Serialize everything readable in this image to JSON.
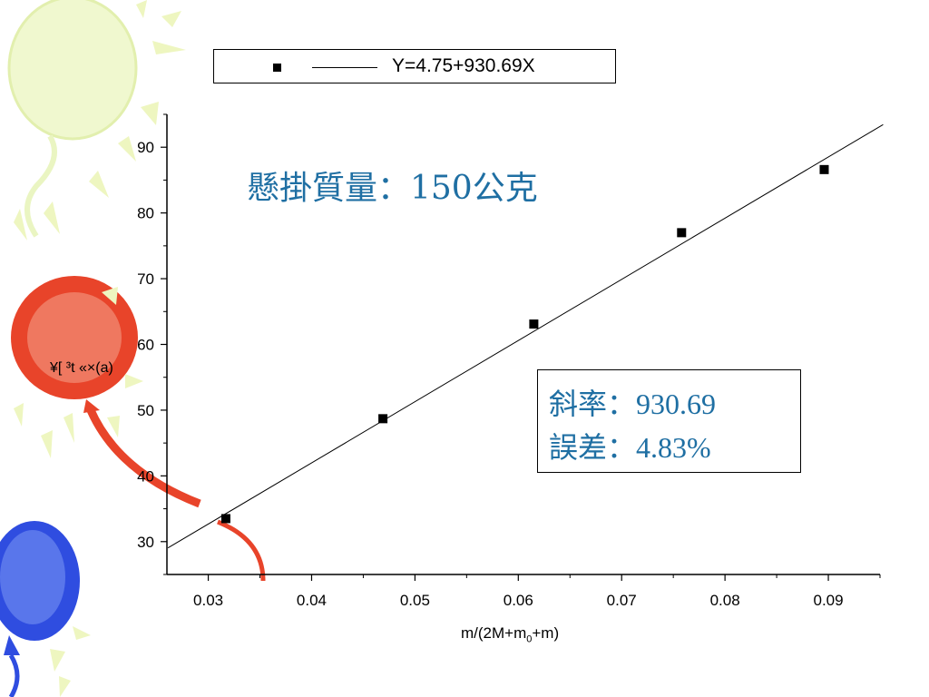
{
  "chart_data": {
    "type": "scatter",
    "title": "",
    "xlabel_main": "m/(2M+m",
    "xlabel_sub": "0",
    "xlabel_tail": "+m)",
    "ylabel": "¥[ ³t «×(a)",
    "xlim": [
      0.026,
      0.095
    ],
    "ylim": [
      25,
      95
    ],
    "xticks": [
      "0.03",
      "0.04",
      "0.05",
      "0.06",
      "0.07",
      "0.08",
      "0.09"
    ],
    "yticks": [
      "30",
      "40",
      "50",
      "60",
      "70",
      "80",
      "90"
    ],
    "series": [
      {
        "kind": "points",
        "x": [
          0.0317,
          0.0469,
          0.0615,
          0.0758,
          0.0896
        ],
        "y": [
          33.5,
          48.7,
          63.1,
          77.0,
          86.6
        ]
      },
      {
        "kind": "fit_line",
        "intercept": 4.75,
        "slope": 930.69,
        "x_range": [
          0.0261,
          0.0953
        ]
      }
    ],
    "legend": {
      "position": "top",
      "label": "Y=4.75+930.69X"
    },
    "annotations": {
      "mass": "懸掛質量：150公克",
      "slope": "斜率：930.69",
      "error": "誤差：4.83%"
    },
    "grid": false
  },
  "colors": {
    "annotation": "#1f6fa3",
    "axis": "#000000",
    "balloon_yellow": "#eef7c8",
    "balloon_red": "#e8442a",
    "balloon_blue": "#2f4de0"
  }
}
